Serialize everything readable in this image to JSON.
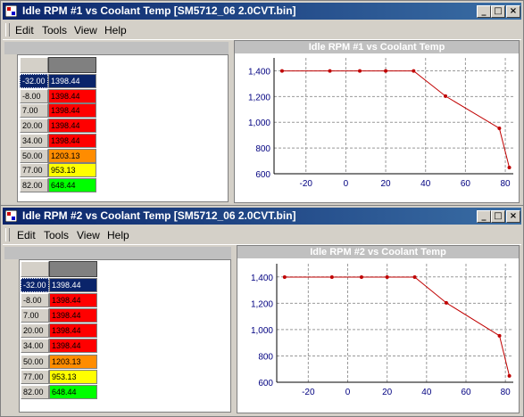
{
  "windows": [
    {
      "title": "Idle RPM #1 vs Coolant Temp [SM5712_06 2.0CVT.bin]",
      "menu": [
        "Edit",
        "Tools",
        "View",
        "Help"
      ],
      "chart_title": "Idle RPM #1 vs Coolant Temp",
      "rows": [
        {
          "temp": "-32.00",
          "rpm": "1398.44",
          "color": "#0a246a",
          "selected": true
        },
        {
          "temp": "-8.00",
          "rpm": "1398.44",
          "color": "#ff0000",
          "selected": false
        },
        {
          "temp": "7.00",
          "rpm": "1398.44",
          "color": "#ff0000",
          "selected": false
        },
        {
          "temp": "20.00",
          "rpm": "1398.44",
          "color": "#ff0000",
          "selected": false
        },
        {
          "temp": "34.00",
          "rpm": "1398.44",
          "color": "#ff0000",
          "selected": false
        },
        {
          "temp": "50.00",
          "rpm": "1203.13",
          "color": "#ff8c00",
          "selected": false
        },
        {
          "temp": "77.00",
          "rpm": "953.13",
          "color": "#ffff00",
          "selected": false
        },
        {
          "temp": "82.00",
          "rpm": "648.44",
          "color": "#00ff00",
          "selected": false
        }
      ]
    },
    {
      "title": "Idle RPM #2 vs Coolant Temp [SM5712_06 2.0CVT.bin]",
      "menu": [
        "Edit",
        "Tools",
        "View",
        "Help"
      ],
      "chart_title": "Idle RPM #2 vs Coolant Temp",
      "rows": [
        {
          "temp": "-32.00",
          "rpm": "1398.44",
          "color": "#0a246a",
          "selected": true
        },
        {
          "temp": "-8.00",
          "rpm": "1398.44",
          "color": "#ff0000",
          "selected": false
        },
        {
          "temp": "7.00",
          "rpm": "1398.44",
          "color": "#ff0000",
          "selected": false
        },
        {
          "temp": "20.00",
          "rpm": "1398.44",
          "color": "#ff0000",
          "selected": false
        },
        {
          "temp": "34.00",
          "rpm": "1398.44",
          "color": "#ff0000",
          "selected": false
        },
        {
          "temp": "50.00",
          "rpm": "1203.13",
          "color": "#ff8c00",
          "selected": false
        },
        {
          "temp": "77.00",
          "rpm": "953.13",
          "color": "#ffff00",
          "selected": false
        },
        {
          "temp": "82.00",
          "rpm": "648.44",
          "color": "#00ff00",
          "selected": false
        }
      ]
    }
  ],
  "chart_data": [
    {
      "type": "line",
      "title": "Idle RPM #1 vs Coolant Temp",
      "x": [
        -32,
        -8,
        7,
        20,
        34,
        50,
        77,
        82
      ],
      "values": [
        1398.44,
        1398.44,
        1398.44,
        1398.44,
        1398.44,
        1203.13,
        953.13,
        648.44
      ],
      "xticks": [
        "-20",
        "0",
        "20",
        "40",
        "60",
        "80"
      ],
      "yticks": [
        "600",
        "800",
        "1,000",
        "1,200",
        "1,400"
      ],
      "xlim": [
        -36,
        84
      ],
      "ylim": [
        600,
        1500
      ],
      "grid": true,
      "line_color": "#c00000"
    },
    {
      "type": "line",
      "title": "Idle RPM #2 vs Coolant Temp",
      "x": [
        -32,
        -8,
        7,
        20,
        34,
        50,
        77,
        82
      ],
      "values": [
        1398.44,
        1398.44,
        1398.44,
        1398.44,
        1398.44,
        1203.13,
        953.13,
        648.44
      ],
      "xticks": [
        "-20",
        "0",
        "20",
        "40",
        "60",
        "80"
      ],
      "yticks": [
        "600",
        "800",
        "1,000",
        "1,200",
        "1,400"
      ],
      "xlim": [
        -36,
        84
      ],
      "ylim": [
        600,
        1500
      ],
      "grid": true,
      "line_color": "#c00000"
    }
  ]
}
